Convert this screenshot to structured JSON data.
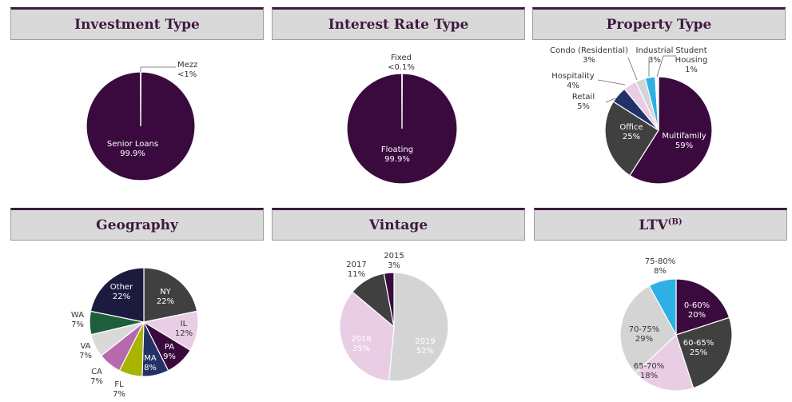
{
  "charts": {
    "investment": {
      "title": "Investment Type",
      "colors": {
        "senior": "#3a0a3e",
        "mezz": "#ffffff"
      },
      "chart_data": {
        "type": "pie",
        "title": "Investment Type",
        "slices": [
          {
            "label": "Senior Loans",
            "value_label": "99.9%",
            "value": 99.9
          },
          {
            "label": "Mezz",
            "value_label": "<1%",
            "value": 0.1
          }
        ]
      }
    },
    "interest": {
      "title": "Interest Rate Type",
      "colors": {
        "floating": "#3a0a3e",
        "fixed": "#ffffff"
      },
      "chart_data": {
        "type": "pie",
        "title": "Interest Rate Type",
        "slices": [
          {
            "label": "Floating",
            "value_label": "99.9%",
            "value": 99.9
          },
          {
            "label": "Fixed",
            "value_label": "<0.1%",
            "value": 0.1
          }
        ]
      }
    },
    "property": {
      "title": "Property Type",
      "colors": {
        "multifamily": "#3a0a3e",
        "office": "#404040",
        "retail": "#233266",
        "hospitality": "#e9cde4",
        "condo": "#d4d4d4",
        "industrial": "#2db1e4",
        "student": "#ffffff"
      },
      "chart_data": {
        "type": "pie",
        "title": "Property Type",
        "slices": [
          {
            "label": "Multifamily",
            "value_label": "59%",
            "value": 59
          },
          {
            "label": "Office",
            "value_label": "25%",
            "value": 25
          },
          {
            "label": "Retail",
            "value_label": "5%",
            "value": 5
          },
          {
            "label": "Hospitality",
            "value_label": "4%",
            "value": 4
          },
          {
            "label": "Condo (Residential)",
            "value_label": "3%",
            "value": 3
          },
          {
            "label": "Industrial",
            "value_label": "3%",
            "value": 3
          },
          {
            "label": "Student Housing",
            "value_label": "1%",
            "value": 1
          }
        ]
      }
    },
    "geography": {
      "title": "Geography",
      "colors": {
        "NY": "#404040",
        "IL": "#e9cde4",
        "PA": "#3a0a3e",
        "MA": "#233266",
        "FL": "#a8b400",
        "CA": "#b669ad",
        "VA": "#d9d9d9",
        "WA": "#1e5e3a",
        "Other": "#1b1b3f"
      },
      "chart_data": {
        "type": "pie",
        "title": "Geography",
        "slices": [
          {
            "label": "NY",
            "value_label": "22%",
            "value": 22
          },
          {
            "label": "IL",
            "value_label": "12%",
            "value": 12
          },
          {
            "label": "PA",
            "value_label": "9%",
            "value": 9
          },
          {
            "label": "MA",
            "value_label": "8%",
            "value": 8
          },
          {
            "label": "FL",
            "value_label": "7%",
            "value": 7
          },
          {
            "label": "CA",
            "value_label": "7%",
            "value": 7
          },
          {
            "label": "VA",
            "value_label": "7%",
            "value": 7
          },
          {
            "label": "WA",
            "value_label": "7%",
            "value": 7
          },
          {
            "label": "Other",
            "value_label": "22%",
            "value": 22
          }
        ]
      }
    },
    "vintage": {
      "title": "Vintage",
      "colors": {
        "2019": "#3a0a3e",
        "2018": "#404040",
        "2017": "#e9cde4",
        "2015": "#d4d4d4"
      },
      "chart_data": {
        "type": "pie",
        "title": "Vintage",
        "slices": [
          {
            "label": "2019",
            "value_label": "52%",
            "value": 52
          },
          {
            "label": "2018",
            "value_label": "35%",
            "value": 35
          },
          {
            "label": "2017",
            "value_label": "11%",
            "value": 11
          },
          {
            "label": "2015",
            "value_label": "3%",
            "value": 3
          }
        ]
      }
    },
    "ltv": {
      "title": "LTV",
      "title_sup": "(B)",
      "colors": {
        "0-60%": "#3a0a3e",
        "60-65%": "#404040",
        "65-70%": "#e9cde4",
        "70-75%": "#d4d4d4",
        "75-80%": "#2db1e4"
      },
      "chart_data": {
        "type": "pie",
        "title": "LTV(B)",
        "slices": [
          {
            "label": "0-60%",
            "value_label": "20%",
            "value": 20
          },
          {
            "label": "60-65%",
            "value_label": "25%",
            "value": 25
          },
          {
            "label": "65-70%",
            "value_label": "18%",
            "value": 18
          },
          {
            "label": "70-75%",
            "value_label": "29%",
            "value": 29
          },
          {
            "label": "75-80%",
            "value_label": "8%",
            "value": 8
          }
        ]
      }
    }
  }
}
